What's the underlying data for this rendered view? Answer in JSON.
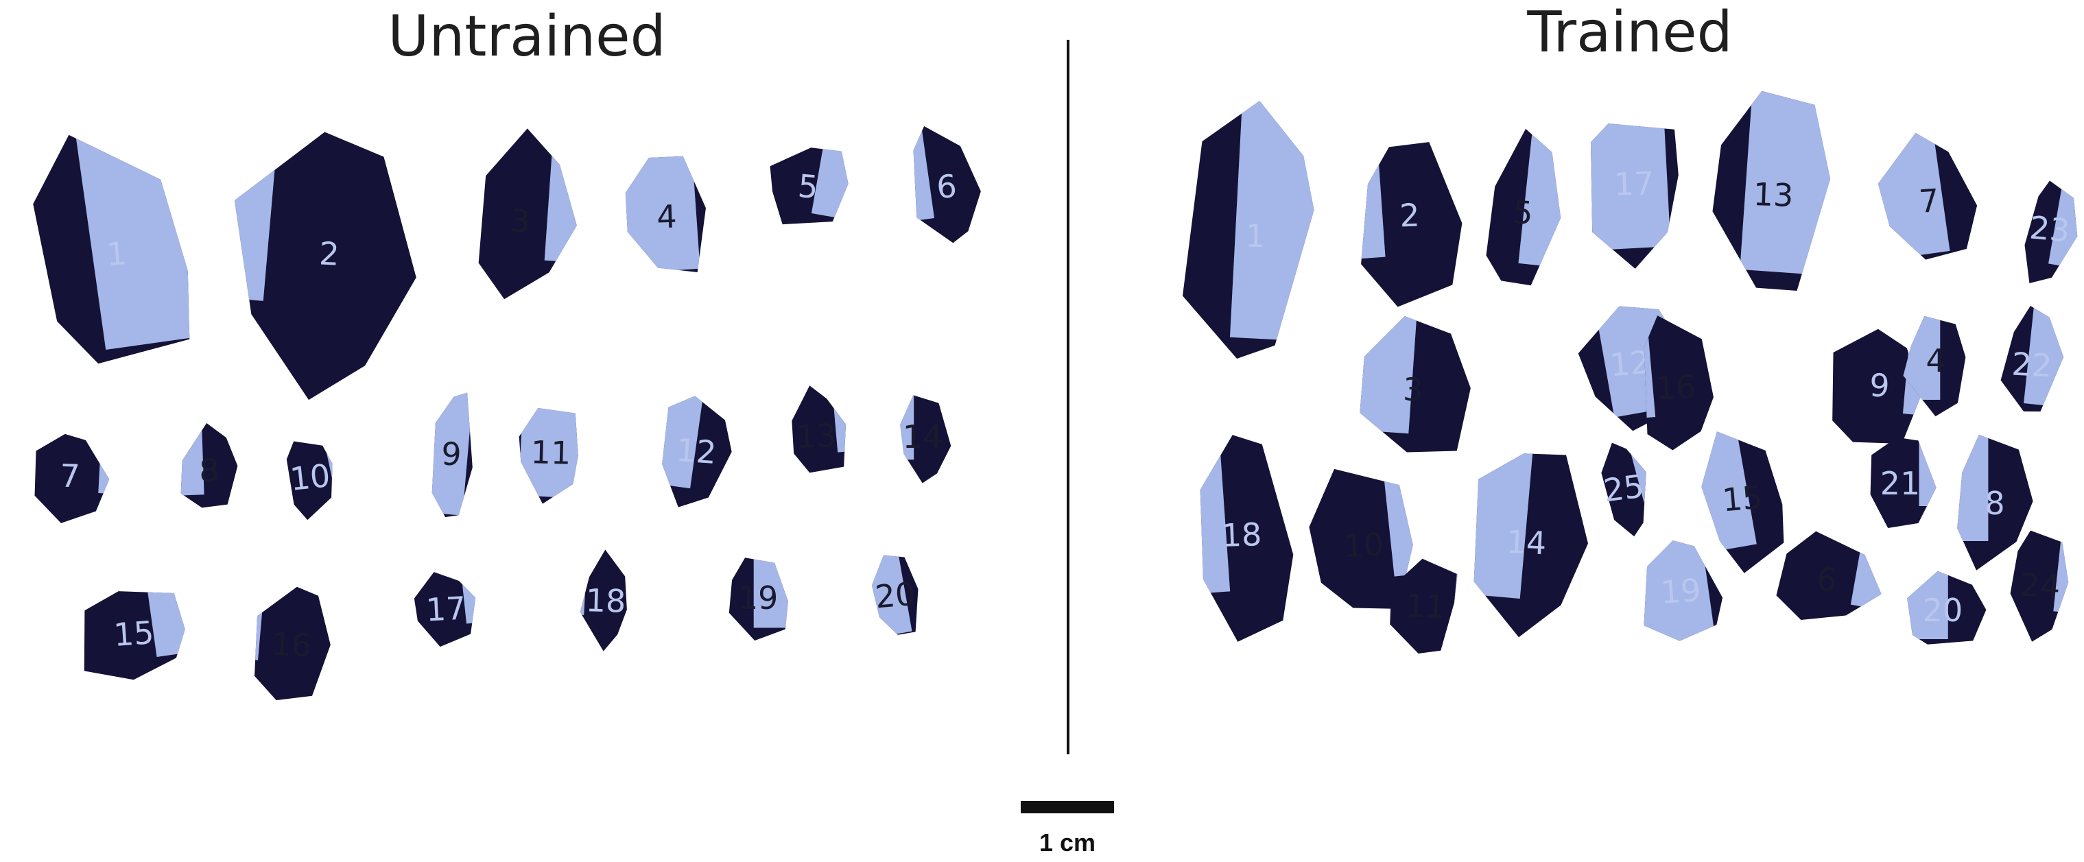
{
  "titles": {
    "untrained": "Untrained",
    "trained": "Trained"
  },
  "scale_bar": {
    "label": "1 cm"
  },
  "colors": {
    "background": "#ffffff",
    "obsidian": "#141236",
    "cortex": "#a5b6e8",
    "ink": "#1f1f1f"
  },
  "untrained_flakes": [
    {
      "id": "1"
    },
    {
      "id": "2"
    },
    {
      "id": "3"
    },
    {
      "id": "4"
    },
    {
      "id": "5"
    },
    {
      "id": "6"
    },
    {
      "id": "7"
    },
    {
      "id": "8"
    },
    {
      "id": "10"
    },
    {
      "id": "9"
    },
    {
      "id": "11"
    },
    {
      "id": "12"
    },
    {
      "id": "13"
    },
    {
      "id": "14"
    },
    {
      "id": "15"
    },
    {
      "id": "16"
    },
    {
      "id": "17"
    },
    {
      "id": "18"
    },
    {
      "id": "19"
    },
    {
      "id": "20"
    }
  ],
  "trained_flakes": [
    {
      "id": "1"
    },
    {
      "id": "2"
    },
    {
      "id": "5"
    },
    {
      "id": "17"
    },
    {
      "id": "13"
    },
    {
      "id": "7"
    },
    {
      "id": "23"
    },
    {
      "id": "3"
    },
    {
      "id": "12"
    },
    {
      "id": "16"
    },
    {
      "id": "9"
    },
    {
      "id": "4"
    },
    {
      "id": "22"
    },
    {
      "id": "18"
    },
    {
      "id": "10"
    },
    {
      "id": "14"
    },
    {
      "id": "25"
    },
    {
      "id": "15"
    },
    {
      "id": "21"
    },
    {
      "id": "8"
    },
    {
      "id": "11"
    },
    {
      "id": "19"
    },
    {
      "id": "6"
    },
    {
      "id": "20"
    },
    {
      "id": "24"
    }
  ]
}
